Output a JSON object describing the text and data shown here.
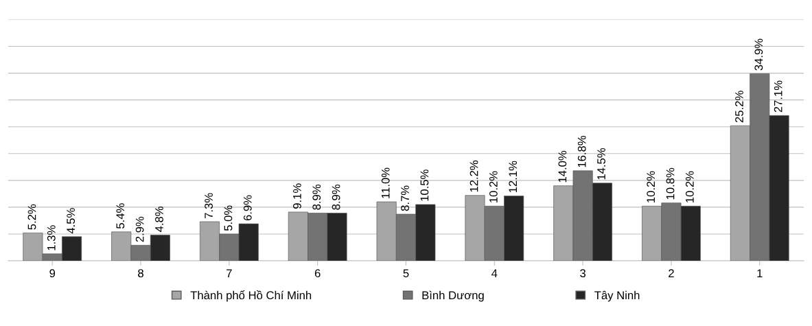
{
  "chart_data": {
    "type": "bar",
    "categories": [
      "9",
      "8",
      "7",
      "6",
      "5",
      "4",
      "3",
      "2",
      "1"
    ],
    "series": [
      {
        "name": "Thành phố Hồ Chí Minh",
        "color": "#a6a6a6",
        "values": [
          5.2,
          5.4,
          7.3,
          9.1,
          11.0,
          12.2,
          14.0,
          10.2,
          25.2
        ],
        "value_labels": [
          "5.2%",
          "5.4%",
          "7.3%",
          "9.1%",
          "11.0%",
          "12.2%",
          "14.0%",
          "10.2%",
          "25.2%"
        ]
      },
      {
        "name": "Bình Dương",
        "color": "#737373",
        "values": [
          1.3,
          2.9,
          5.0,
          8.9,
          8.7,
          10.2,
          16.8,
          10.8,
          34.9
        ],
        "value_labels": [
          "1.3%",
          "2.9%",
          "5.0%",
          "8.9%",
          "8.7%",
          "10.2%",
          "16.8%",
          "10.8%",
          "34.9%"
        ]
      },
      {
        "name": "Tây Ninh",
        "color": "#262626",
        "values": [
          4.5,
          4.8,
          6.9,
          8.9,
          10.5,
          12.1,
          14.5,
          10.2,
          27.1
        ],
        "value_labels": [
          "4.5%",
          "4.8%",
          "6.9%",
          "8.9%",
          "10.5%",
          "12.1%",
          "14.5%",
          "10.2%",
          "27.1%"
        ]
      }
    ],
    "ylim": [
      0,
      45
    ],
    "yticks": [
      {
        "value": 0,
        "label": null
      },
      {
        "value": 5,
        "label": null
      },
      {
        "value": 10,
        "label": null
      },
      {
        "value": 15,
        "label": null
      },
      {
        "value": 20,
        "label": null
      },
      {
        "value": 25,
        "label": null
      },
      {
        "value": 30,
        "label": null
      },
      {
        "value": 35,
        "label": null
      },
      {
        "value": 40,
        "label": null
      },
      {
        "value": 45,
        "label": null
      }
    ],
    "tick_labels": "x",
    "grid": "y",
    "legend": "bottom"
  }
}
